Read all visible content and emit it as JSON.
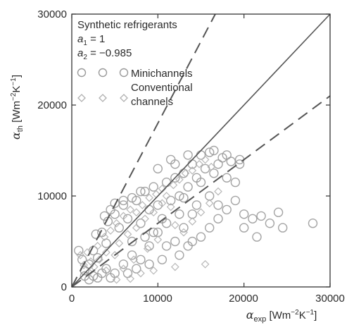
{
  "colors": {
    "axis": "#333333",
    "text": "#2a2a2a",
    "marker": "#9a9a9a",
    "marker_conventional": "#b0b0b0",
    "reference_line": "#555555",
    "band_line": "#555555"
  },
  "chart_data": {
    "type": "scatter",
    "title": "",
    "xlabel": {
      "symbol": "α",
      "sub": "exp",
      "unit_pre": " [Wm",
      "unit_exp1": "−2",
      "unit_mid": "K",
      "unit_exp2": "−1",
      "unit_post": "]"
    },
    "ylabel": {
      "symbol": "α",
      "sub": "th",
      "unit_pre": " [Wm",
      "unit_exp1": "−2",
      "unit_mid": "K",
      "unit_exp2": "−1",
      "unit_post": "]"
    },
    "xlim": [
      0,
      30000
    ],
    "ylim": [
      0,
      30000
    ],
    "x_ticks": [
      0,
      10000,
      20000,
      30000
    ],
    "y_ticks": [
      0,
      10000,
      20000,
      30000
    ],
    "x_tick_labels": [
      "0",
      "10000",
      "20000",
      "30000"
    ],
    "y_tick_labels": [
      "0",
      "10000",
      "20000",
      "30000"
    ],
    "grid": false,
    "legend_position": "top-left",
    "annotation": {
      "heading": "Synthetic refrigerants",
      "a1_symbol": "a",
      "a1_sub": "1",
      "a1_value": " = 1",
      "a2_symbol": "a",
      "a2_sub": "2",
      "a2_value": " = −0.985"
    },
    "legend": [
      {
        "name": "Minichannels",
        "marker": "circle"
      },
      {
        "name_line1": "Conventional",
        "name_line2": "channels",
        "marker": "diamond"
      }
    ],
    "reference_lines": [
      {
        "style": "solid",
        "slope": 1.0
      },
      {
        "style": "dashed",
        "slope": 1.8
      },
      {
        "style": "dashed",
        "slope": 0.7
      }
    ],
    "series": [
      {
        "marker": "circle",
        "points": [
          [
            800,
            4000
          ],
          [
            1200,
            3000
          ],
          [
            1500,
            1200
          ],
          [
            2000,
            2500
          ],
          [
            2500,
            4000
          ],
          [
            3000,
            3200
          ],
          [
            2800,
            5800
          ],
          [
            3500,
            6000
          ],
          [
            4000,
            4800
          ],
          [
            4200,
            7200
          ],
          [
            5000,
            8000
          ],
          [
            5500,
            6500
          ],
          [
            6000,
            9000
          ],
          [
            6500,
            7500
          ],
          [
            7000,
            5000
          ],
          [
            7500,
            9500
          ],
          [
            8000,
            7000
          ],
          [
            8500,
            10500
          ],
          [
            9000,
            8500
          ],
          [
            9500,
            11000
          ],
          [
            10000,
            9000
          ],
          [
            10500,
            7500
          ],
          [
            11000,
            11500
          ],
          [
            11500,
            9500
          ],
          [
            12000,
            12000
          ],
          [
            12500,
            10000
          ],
          [
            13000,
            12500
          ],
          [
            13500,
            11000
          ],
          [
            14000,
            13500
          ],
          [
            14500,
            12000
          ],
          [
            15000,
            14500
          ],
          [
            15500,
            13000
          ],
          [
            16000,
            14800
          ],
          [
            16500,
            12500
          ],
          [
            17000,
            13500
          ],
          [
            17500,
            14200
          ],
          [
            18000,
            12000
          ],
          [
            18500,
            13800
          ],
          [
            19000,
            11500
          ],
          [
            19500,
            13500
          ],
          [
            17000,
            9000
          ],
          [
            18000,
            8500
          ],
          [
            19000,
            9500
          ],
          [
            20000,
            8000
          ],
          [
            21000,
            7500
          ],
          [
            22000,
            7800
          ],
          [
            23000,
            7000
          ],
          [
            24000,
            8200
          ],
          [
            24500,
            6500
          ],
          [
            28000,
            7000
          ],
          [
            21500,
            5500
          ],
          [
            20000,
            6500
          ],
          [
            17000,
            7500
          ],
          [
            16000,
            6500
          ],
          [
            15000,
            5500
          ],
          [
            14000,
            8000
          ],
          [
            13000,
            6500
          ],
          [
            12000,
            5000
          ],
          [
            11000,
            4500
          ],
          [
            10000,
            6000
          ],
          [
            9000,
            4500
          ],
          [
            8000,
            3000
          ],
          [
            7000,
            3500
          ],
          [
            6000,
            2500
          ],
          [
            5000,
            1500
          ],
          [
            4000,
            2000
          ],
          [
            3000,
            1000
          ],
          [
            2000,
            800
          ],
          [
            1500,
            1800
          ],
          [
            7000,
            9800
          ],
          [
            6000,
            9500
          ],
          [
            5000,
            9200
          ],
          [
            8000,
            10500
          ],
          [
            4500,
            8500
          ],
          [
            3800,
            7800
          ],
          [
            16000,
            10000
          ],
          [
            15000,
            11500
          ],
          [
            14500,
            9000
          ],
          [
            13000,
            9800
          ],
          [
            12500,
            8000
          ],
          [
            11000,
            7000
          ],
          [
            9500,
            6000
          ],
          [
            8500,
            5500
          ],
          [
            10000,
            13000
          ],
          [
            11500,
            14000
          ],
          [
            12000,
            13500
          ],
          [
            13500,
            14500
          ],
          [
            16500,
            15000
          ],
          [
            18000,
            14500
          ],
          [
            19500,
            14000
          ],
          [
            14000,
            5000
          ],
          [
            13500,
            4500
          ],
          [
            12500,
            3500
          ],
          [
            10500,
            3000
          ],
          [
            9000,
            2500
          ],
          [
            7500,
            2000
          ],
          [
            6500,
            1500
          ],
          [
            4500,
            1000
          ],
          [
            3500,
            1500
          ],
          [
            2500,
            1200
          ]
        ]
      },
      {
        "marker": "diamond",
        "points": [
          [
            1000,
            3500
          ],
          [
            1800,
            3800
          ],
          [
            2200,
            2800
          ],
          [
            3000,
            4500
          ],
          [
            3800,
            5500
          ],
          [
            4500,
            6200
          ],
          [
            5200,
            7000
          ],
          [
            6000,
            7800
          ],
          [
            6800,
            8500
          ],
          [
            7500,
            8200
          ],
          [
            8200,
            9000
          ],
          [
            9000,
            9800
          ],
          [
            9800,
            10200
          ],
          [
            10500,
            10800
          ],
          [
            11000,
            10000
          ],
          [
            11800,
            11200
          ],
          [
            12500,
            11800
          ],
          [
            13200,
            12500
          ],
          [
            14000,
            12800
          ],
          [
            14800,
            13500
          ],
          [
            15500,
            14000
          ],
          [
            16200,
            13200
          ],
          [
            5500,
            4800
          ],
          [
            6500,
            5800
          ],
          [
            7500,
            6500
          ],
          [
            8500,
            7500
          ],
          [
            9500,
            8200
          ],
          [
            10500,
            9200
          ],
          [
            11500,
            8800
          ],
          [
            12000,
            6800
          ],
          [
            10000,
            5200
          ],
          [
            8800,
            4200
          ],
          [
            7200,
            3000
          ],
          [
            6000,
            2000
          ],
          [
            5000,
            3500
          ],
          [
            4000,
            3800
          ],
          [
            3200,
            3000
          ],
          [
            2600,
            2200
          ],
          [
            2000,
            1600
          ],
          [
            1400,
            2400
          ],
          [
            15500,
            2500
          ],
          [
            12000,
            2200
          ],
          [
            9500,
            1800
          ],
          [
            8000,
            1500
          ],
          [
            6800,
            900
          ],
          [
            5200,
            800
          ],
          [
            4000,
            1800
          ],
          [
            13000,
            6000
          ],
          [
            14000,
            7200
          ],
          [
            15000,
            8200
          ],
          [
            16000,
            9200
          ],
          [
            17000,
            10500
          ]
        ]
      }
    ]
  }
}
